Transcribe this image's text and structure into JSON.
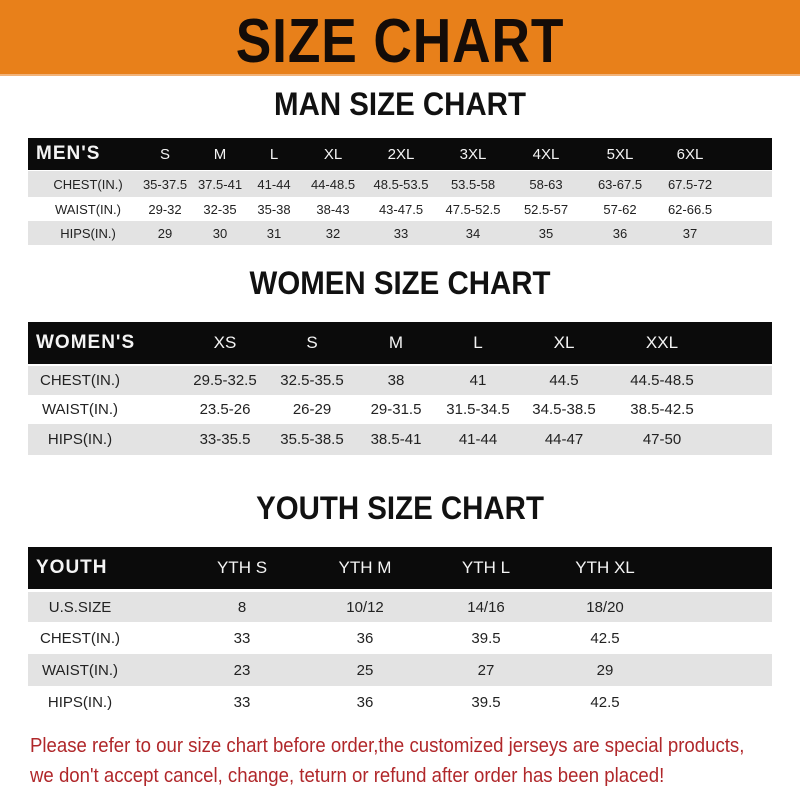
{
  "header": {
    "title": "SIZE CHART",
    "color": "#e8801a"
  },
  "men": {
    "title": "MAN SIZE CHART",
    "columns": [
      "MEN'S",
      "S",
      "M",
      "L",
      "XL",
      "2XL",
      "3XL",
      "4XL",
      "5XL",
      "6XL"
    ],
    "rows": [
      [
        "CHEST(IN.)",
        "35-37.5",
        "37.5-41",
        "41-44",
        "44-48.5",
        "48.5-53.5",
        "53.5-58",
        "58-63",
        "63-67.5",
        "67.5-72"
      ],
      [
        "WAIST(IN.)",
        "29-32",
        "32-35",
        "35-38",
        "38-43",
        "43-47.5",
        "47.5-52.5",
        "52.5-57",
        "57-62",
        "62-66.5"
      ],
      [
        "HIPS(IN.)",
        "29",
        "30",
        "31",
        "32",
        "33",
        "34",
        "35",
        "36",
        "37"
      ]
    ]
  },
  "women": {
    "title": "WOMEN SIZE CHART",
    "columns": [
      "WOMEN'S",
      "XS",
      "S",
      "M",
      "L",
      "XL",
      "XXL"
    ],
    "rows": [
      [
        "CHEST(IN.)",
        "29.5-32.5",
        "32.5-35.5",
        "38",
        "41",
        "44.5",
        "44.5-48.5"
      ],
      [
        "WAIST(IN.)",
        "23.5-26",
        "26-29",
        "29-31.5",
        "31.5-34.5",
        "34.5-38.5",
        "38.5-42.5"
      ],
      [
        "HIPS(IN.)",
        "33-35.5",
        "35.5-38.5",
        "38.5-41",
        "41-44",
        "44-47",
        "47-50"
      ]
    ]
  },
  "youth": {
    "title": "YOUTH SIZE CHART",
    "columns": [
      "YOUTH",
      "YTH S",
      "YTH M",
      "YTH L",
      "YTH XL"
    ],
    "rows": [
      [
        "U.S.SIZE",
        "8",
        "10/12",
        "14/16",
        "18/20"
      ],
      [
        "CHEST(IN.)",
        "33",
        "36",
        "39.5",
        "42.5"
      ],
      [
        "WAIST(IN.)",
        "23",
        "25",
        "27",
        "29"
      ],
      [
        "HIPS(IN.)",
        "33",
        "36",
        "39.5",
        "42.5"
      ]
    ]
  },
  "notice": {
    "line1": "Please refer to our size chart before order,the customized jerseys are special products,",
    "line2": "we don't accept cancel, change, teturn or refund after order has been placed!",
    "color": "#b0272a"
  }
}
